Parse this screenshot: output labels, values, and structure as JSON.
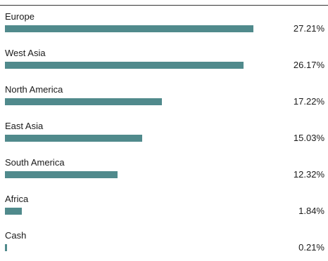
{
  "chart_data": {
    "type": "bar",
    "orientation": "horizontal",
    "categories": [
      "Europe",
      "West Asia",
      "North America",
      "East Asia",
      "South America",
      "Africa",
      "Cash"
    ],
    "values": [
      27.21,
      26.17,
      17.22,
      15.03,
      12.32,
      1.84,
      0.21
    ],
    "value_labels": [
      "27.21%",
      "26.17%",
      "17.22%",
      "15.03%",
      "12.32%",
      "1.84%",
      "0.21%"
    ],
    "xlim": [
      0,
      29.3
    ],
    "bar_color": "#508a8c",
    "grid": false,
    "legend": false
  }
}
